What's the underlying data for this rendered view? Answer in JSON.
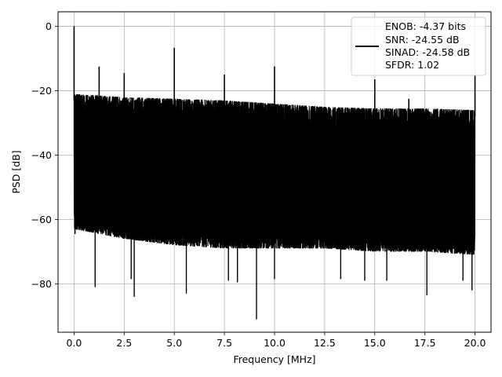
{
  "chart_data": {
    "type": "line",
    "title": "",
    "xlabel": "Frequency [MHz]",
    "ylabel": "PSD [dB]",
    "xlim": [
      -0.8,
      20.8
    ],
    "ylim": [
      -95,
      4.5
    ],
    "xticks": [
      0.0,
      2.5,
      5.0,
      7.5,
      10.0,
      12.5,
      15.0,
      17.5,
      20.0
    ],
    "xtick_labels": [
      "0.0",
      "2.5",
      "5.0",
      "7.5",
      "10.0",
      "12.5",
      "15.0",
      "17.5",
      "20.0"
    ],
    "yticks": [
      0,
      -20,
      -40,
      -60,
      -80
    ],
    "ytick_labels": [
      "0",
      "−20",
      "−40",
      "−60",
      "−80"
    ],
    "grid": true,
    "legend_position": "top-right",
    "legend": {
      "line_color": "#000000",
      "entries": [
        "ENOB: -4.37 bits",
        "SNR: -24.55 dB",
        "SINAD: -24.58 dB",
        "SFDR: 1.02"
      ]
    },
    "series": [
      {
        "color": "#000000",
        "noise_envelope": {
          "x": [
            0.0,
            2.5,
            5.0,
            7.5,
            10.0,
            12.5,
            15.0,
            17.5,
            20.0
          ],
          "upper_db": [
            -21,
            -22,
            -22.5,
            -23,
            -24,
            -25,
            -25.5,
            -25.5,
            -26
          ],
          "lower_db": [
            -63,
            -66,
            -68,
            -69,
            -69,
            -69,
            -70,
            -70,
            -71
          ]
        },
        "spikes": [
          {
            "x": 0.0,
            "y": 0.0
          },
          {
            "x": 1.25,
            "y": -12.5
          },
          {
            "x": 2.5,
            "y": -14.5
          },
          {
            "x": 5.0,
            "y": -6.7
          },
          {
            "x": 7.5,
            "y": -15.0
          },
          {
            "x": 10.0,
            "y": -12.5
          },
          {
            "x": 15.0,
            "y": -16.5
          },
          {
            "x": 16.7,
            "y": -22.5
          },
          {
            "x": 20.0,
            "y": -15.0
          }
        ],
        "dips": [
          {
            "x": 0.05,
            "y": -64.5
          },
          {
            "x": 1.05,
            "y": -81.0
          },
          {
            "x": 3.0,
            "y": -84.0
          },
          {
            "x": 2.85,
            "y": -78.5
          },
          {
            "x": 5.6,
            "y": -83.0
          },
          {
            "x": 7.7,
            "y": -79.0
          },
          {
            "x": 8.15,
            "y": -79.5
          },
          {
            "x": 9.1,
            "y": -91.0
          },
          {
            "x": 10.0,
            "y": -78.5
          },
          {
            "x": 13.3,
            "y": -78.5
          },
          {
            "x": 14.5,
            "y": -79.0
          },
          {
            "x": 15.6,
            "y": -79.0
          },
          {
            "x": 17.6,
            "y": -83.5
          },
          {
            "x": 19.4,
            "y": -79.0
          },
          {
            "x": 19.85,
            "y": -82.0
          }
        ]
      }
    ]
  }
}
